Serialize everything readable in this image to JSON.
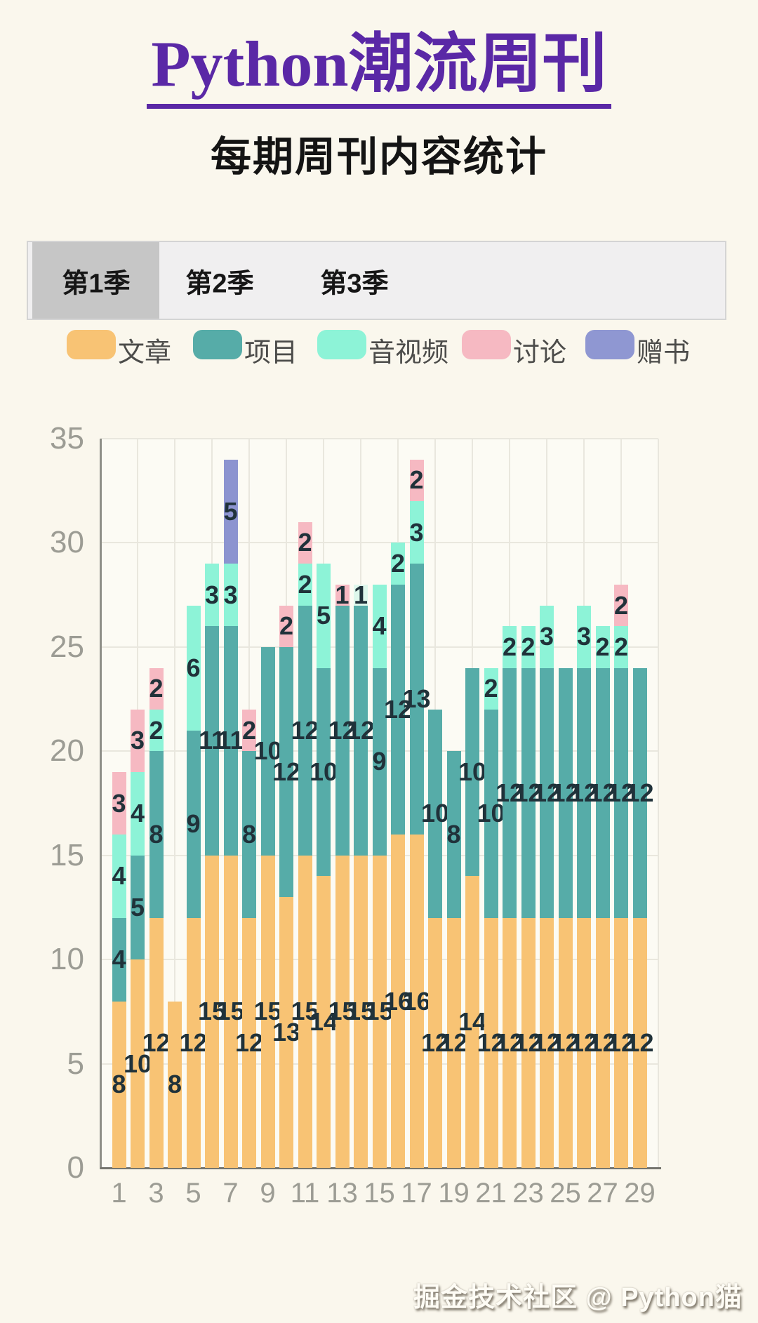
{
  "header": {
    "title": "Python潮流周刊",
    "subtitle": "每期周刊内容统计",
    "title_color": "#5a28a6"
  },
  "tabs": {
    "items": [
      {
        "label": "第1季",
        "active": true
      },
      {
        "label": "第2季",
        "active": false
      },
      {
        "label": "第3季",
        "active": false
      }
    ]
  },
  "legend": {
    "items": [
      {
        "label": "文章",
        "color": "#f8c374"
      },
      {
        "label": "项目",
        "color": "#56aca8"
      },
      {
        "label": "音视频",
        "color": "#8df3d7"
      },
      {
        "label": "讨论",
        "color": "#f6b9c2"
      },
      {
        "label": "赠书",
        "color": "#8f97d2"
      }
    ]
  },
  "footer": {
    "credit": "掘金技术社区 @ Python猫"
  },
  "chart_data": {
    "type": "bar",
    "stacked": true,
    "title": "每期周刊内容统计",
    "x": [
      1,
      2,
      3,
      4,
      5,
      6,
      7,
      8,
      9,
      10,
      11,
      12,
      13,
      14,
      15,
      16,
      17,
      18,
      19,
      20,
      21,
      22,
      23,
      24,
      25,
      26,
      27,
      28,
      29
    ],
    "x_tick_labels": [
      "1",
      "3",
      "5",
      "7",
      "9",
      "11",
      "13",
      "15",
      "17",
      "19",
      "21",
      "23",
      "25",
      "27",
      "29"
    ],
    "ylim": [
      0,
      35
    ],
    "yticks": [
      0,
      5,
      10,
      15,
      20,
      25,
      30,
      35
    ],
    "grid": true,
    "legend_position": "top",
    "series": [
      {
        "name": "文章",
        "color": "#f8c374",
        "values": [
          8,
          10,
          12,
          8,
          12,
          15,
          15,
          12,
          15,
          13,
          15,
          14,
          15,
          15,
          15,
          16,
          16,
          12,
          12,
          14,
          12,
          12,
          12,
          12,
          12,
          12,
          12,
          12,
          12
        ]
      },
      {
        "name": "项目",
        "color": "#56aca8",
        "values": [
          4,
          5,
          8,
          0,
          9,
          11,
          11,
          8,
          10,
          12,
          12,
          10,
          12,
          12,
          9,
          12,
          13,
          10,
          8,
          10,
          10,
          12,
          12,
          12,
          12,
          12,
          12,
          12,
          12
        ]
      },
      {
        "name": "音视频",
        "color": "#8df3d7",
        "values": [
          4,
          4,
          2,
          0,
          6,
          3,
          3,
          0,
          0,
          0,
          2,
          5,
          0,
          1,
          4,
          2,
          3,
          0,
          0,
          0,
          2,
          2,
          2,
          3,
          0,
          3,
          2,
          2,
          0
        ]
      },
      {
        "name": "讨论",
        "color": "#f6b9c2",
        "values": [
          3,
          3,
          2,
          0,
          0,
          0,
          0,
          2,
          0,
          2,
          2,
          0,
          1,
          0,
          0,
          0,
          2,
          0,
          0,
          0,
          0,
          0,
          0,
          0,
          0,
          0,
          0,
          2,
          0
        ]
      },
      {
        "name": "赠书",
        "color": "#8c94d0",
        "values": [
          0,
          0,
          0,
          0,
          0,
          0,
          5,
          0,
          0,
          0,
          0,
          0,
          0,
          0,
          0,
          0,
          0,
          0,
          0,
          0,
          0,
          0,
          0,
          0,
          0,
          0,
          0,
          0,
          0
        ]
      }
    ],
    "segment_color_overrides": [
      {
        "series_index": 2,
        "point_index": 13,
        "color": "#def7ec"
      }
    ],
    "value_label_color": "#20323a",
    "axis_text_color": "#9c9c94",
    "grid_color": "#e9e7de",
    "axis_line_color": "#8f8f88",
    "baseline_color": "#75756e",
    "plot_background": "#fcfbf4",
    "page_background": "#faf7ed"
  }
}
